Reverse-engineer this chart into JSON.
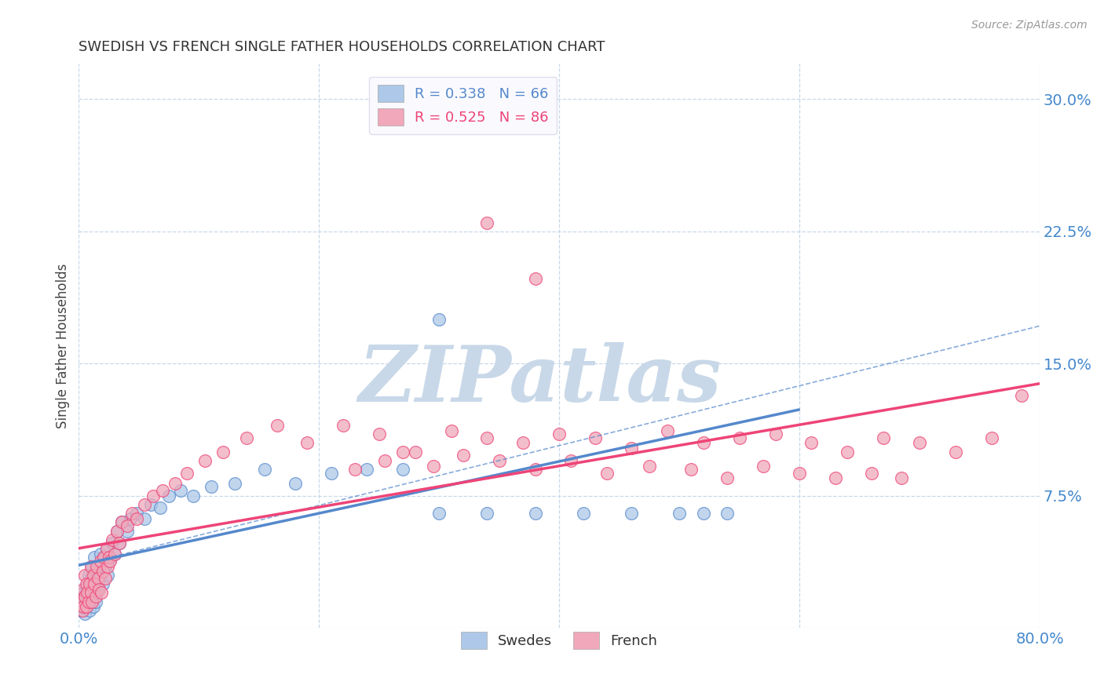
{
  "title": "SWEDISH VS FRENCH SINGLE FATHER HOUSEHOLDS CORRELATION CHART",
  "source": "Source: ZipAtlas.com",
  "ylabel": "Single Father Households",
  "xlim": [
    0,
    0.8
  ],
  "ylim": [
    0,
    0.32
  ],
  "xticks": [
    0.0,
    0.2,
    0.4,
    0.6,
    0.8
  ],
  "xticklabels": [
    "0.0%",
    "",
    "",
    "",
    "80.0%"
  ],
  "yticks": [
    0.0,
    0.075,
    0.15,
    0.225,
    0.3
  ],
  "yticklabels": [
    "",
    "7.5%",
    "15.0%",
    "22.5%",
    "30.0%"
  ],
  "swedish_R": 0.338,
  "swedish_N": 66,
  "french_R": 0.525,
  "french_N": 86,
  "swedish_color": "#adc8e8",
  "french_color": "#f0a8ba",
  "swedish_line_color": "#5588cc",
  "french_line_color": "#ee4477",
  "swedish_x": [
    0.002,
    0.003,
    0.004,
    0.004,
    0.005,
    0.005,
    0.006,
    0.006,
    0.007,
    0.007,
    0.008,
    0.008,
    0.009,
    0.009,
    0.01,
    0.01,
    0.011,
    0.011,
    0.012,
    0.012,
    0.013,
    0.013,
    0.014,
    0.015,
    0.016,
    0.016,
    0.018,
    0.018,
    0.02,
    0.021,
    0.022,
    0.023,
    0.024,
    0.025,
    0.026,
    0.028,
    0.03,
    0.032,
    0.034,
    0.036,
    0.04,
    0.043,
    0.048,
    0.055,
    0.06,
    0.068,
    0.075,
    0.085,
    0.095,
    0.11,
    0.13,
    0.155,
    0.18,
    0.21,
    0.24,
    0.27,
    0.3,
    0.34,
    0.38,
    0.42,
    0.46,
    0.5,
    0.52,
    0.54,
    0.28,
    0.3
  ],
  "swedish_y": [
    0.01,
    0.015,
    0.012,
    0.02,
    0.008,
    0.018,
    0.015,
    0.022,
    0.012,
    0.025,
    0.018,
    0.03,
    0.01,
    0.022,
    0.015,
    0.028,
    0.02,
    0.035,
    0.012,
    0.025,
    0.03,
    0.04,
    0.015,
    0.02,
    0.025,
    0.035,
    0.03,
    0.042,
    0.025,
    0.04,
    0.035,
    0.045,
    0.03,
    0.038,
    0.04,
    0.048,
    0.042,
    0.055,
    0.048,
    0.06,
    0.055,
    0.062,
    0.065,
    0.062,
    0.07,
    0.068,
    0.075,
    0.078,
    0.075,
    0.08,
    0.082,
    0.09,
    0.082,
    0.088,
    0.09,
    0.09,
    0.065,
    0.065,
    0.065,
    0.065,
    0.065,
    0.065,
    0.065,
    0.065,
    0.285,
    0.175
  ],
  "french_x": [
    0.002,
    0.003,
    0.004,
    0.004,
    0.005,
    0.005,
    0.006,
    0.006,
    0.007,
    0.008,
    0.009,
    0.01,
    0.01,
    0.011,
    0.012,
    0.013,
    0.014,
    0.015,
    0.016,
    0.017,
    0.018,
    0.019,
    0.02,
    0.021,
    0.022,
    0.023,
    0.024,
    0.025,
    0.026,
    0.028,
    0.03,
    0.032,
    0.034,
    0.036,
    0.04,
    0.044,
    0.048,
    0.055,
    0.062,
    0.07,
    0.08,
    0.09,
    0.105,
    0.12,
    0.14,
    0.165,
    0.19,
    0.22,
    0.25,
    0.28,
    0.31,
    0.34,
    0.37,
    0.4,
    0.43,
    0.46,
    0.49,
    0.52,
    0.55,
    0.58,
    0.61,
    0.64,
    0.67,
    0.7,
    0.73,
    0.76,
    0.785,
    0.23,
    0.255,
    0.27,
    0.295,
    0.32,
    0.35,
    0.38,
    0.41,
    0.44,
    0.475,
    0.51,
    0.54,
    0.57,
    0.6,
    0.63,
    0.66,
    0.685,
    0.34,
    0.38
  ],
  "french_y": [
    0.015,
    0.01,
    0.012,
    0.022,
    0.018,
    0.03,
    0.012,
    0.025,
    0.02,
    0.015,
    0.025,
    0.02,
    0.035,
    0.015,
    0.03,
    0.025,
    0.018,
    0.035,
    0.028,
    0.022,
    0.038,
    0.02,
    0.032,
    0.04,
    0.028,
    0.045,
    0.035,
    0.04,
    0.038,
    0.05,
    0.042,
    0.055,
    0.048,
    0.06,
    0.058,
    0.065,
    0.062,
    0.07,
    0.075,
    0.078,
    0.082,
    0.088,
    0.095,
    0.1,
    0.108,
    0.115,
    0.105,
    0.115,
    0.11,
    0.1,
    0.112,
    0.108,
    0.105,
    0.11,
    0.108,
    0.102,
    0.112,
    0.105,
    0.108,
    0.11,
    0.105,
    0.1,
    0.108,
    0.105,
    0.1,
    0.108,
    0.132,
    0.09,
    0.095,
    0.1,
    0.092,
    0.098,
    0.095,
    0.09,
    0.095,
    0.088,
    0.092,
    0.09,
    0.085,
    0.092,
    0.088,
    0.085,
    0.088,
    0.085,
    0.23,
    0.198
  ],
  "background_color": "#ffffff",
  "grid_color": "#c8d8e8",
  "title_color": "#333333",
  "tick_label_color": "#4488cc",
  "watermark_text": "ZIPatlas",
  "watermark_color": "#c8d8e8",
  "legend_box_color": "#fafafe"
}
